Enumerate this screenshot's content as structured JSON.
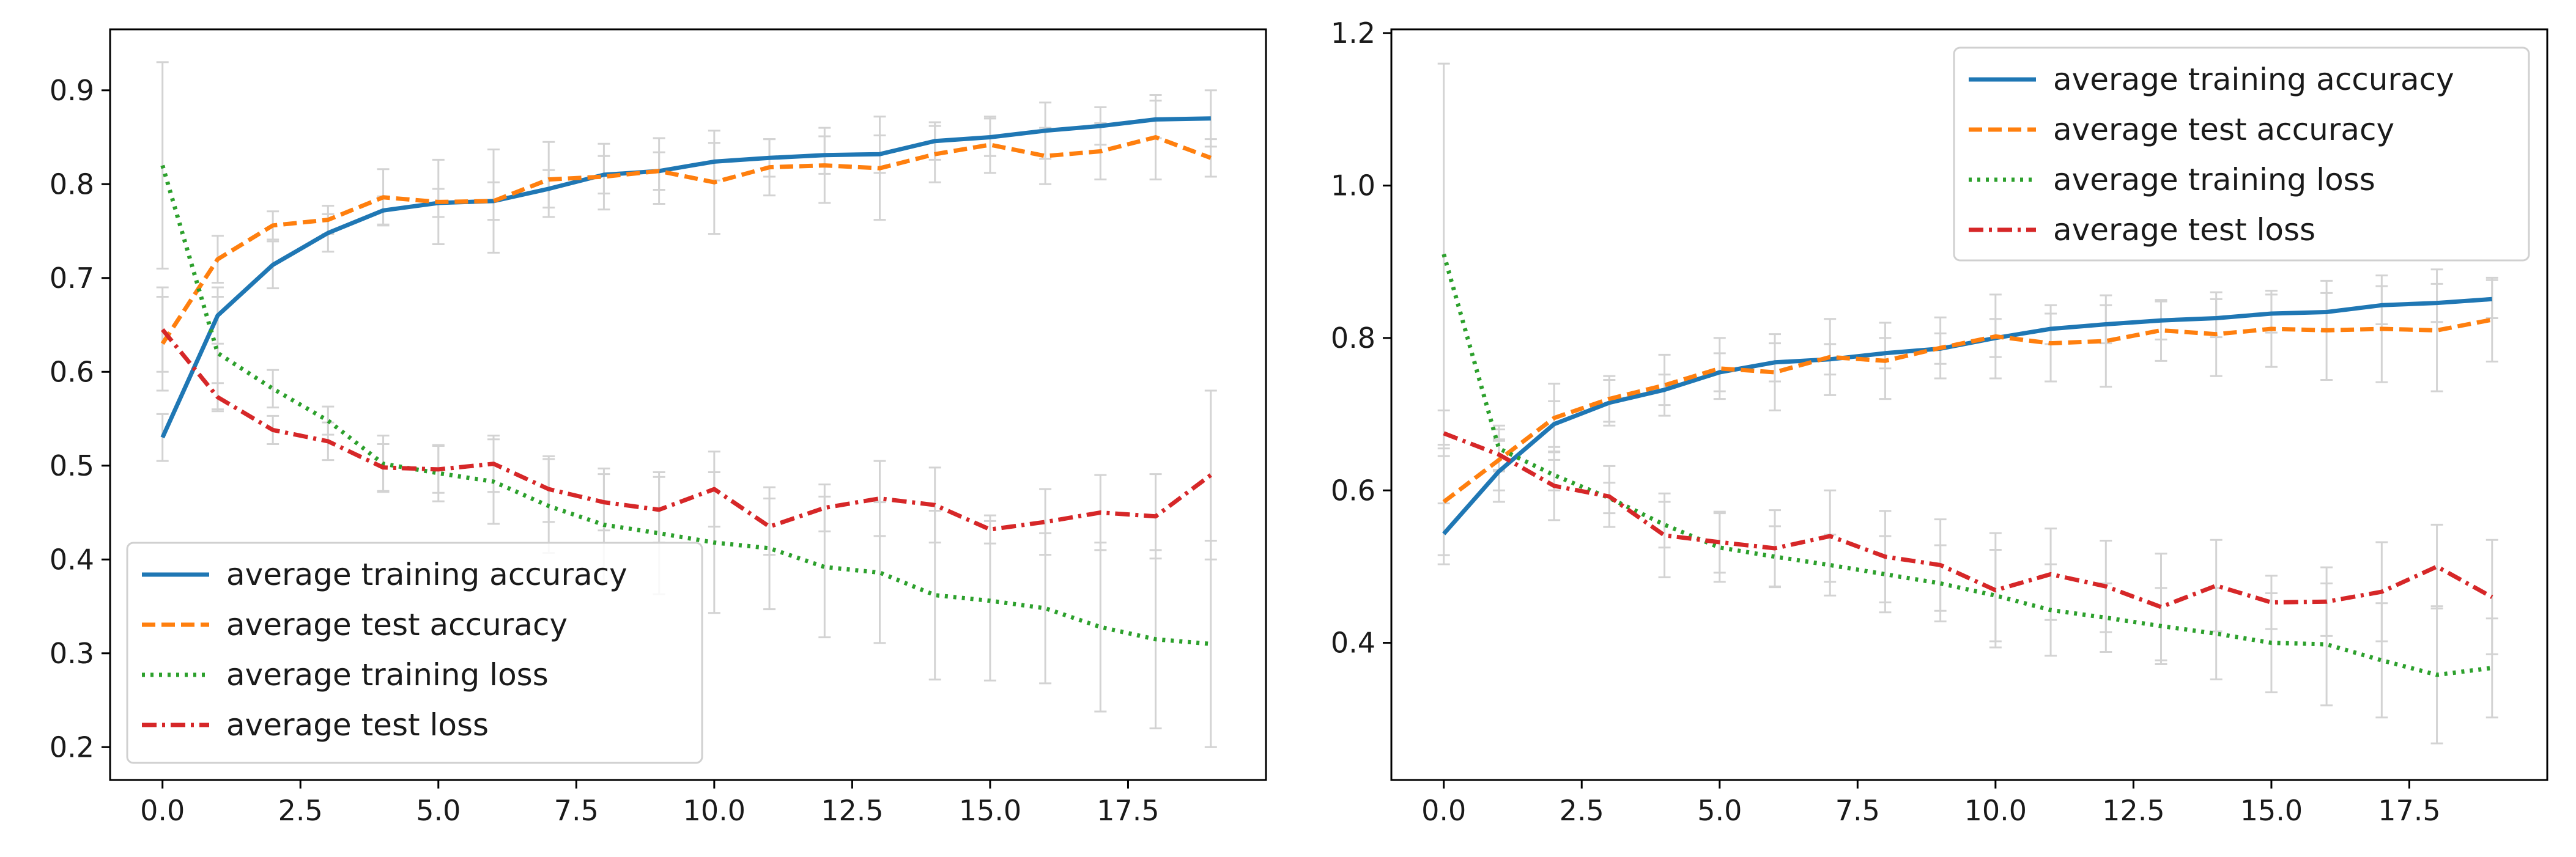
{
  "chart_data": [
    {
      "type": "line",
      "title": "",
      "xlabel": "",
      "ylabel": "",
      "xlim": [
        -0.95,
        20.0
      ],
      "ylim": [
        0.165,
        0.965
      ],
      "xticks": [
        0.0,
        2.5,
        5.0,
        7.5,
        10.0,
        12.5,
        15.0,
        17.5
      ],
      "xtick_labels": [
        "0.0",
        "2.5",
        "5.0",
        "7.5",
        "10.0",
        "12.5",
        "15.0",
        "17.5"
      ],
      "yticks": [
        0.2,
        0.3,
        0.4,
        0.5,
        0.6,
        0.7,
        0.8,
        0.9
      ],
      "ytick_labels": [
        "0.2",
        "0.3",
        "0.4",
        "0.5",
        "0.6",
        "0.7",
        "0.8",
        "0.9"
      ],
      "legend_position": "lower-left",
      "x": [
        0,
        1,
        2,
        3,
        4,
        5,
        6,
        7,
        8,
        9,
        10,
        11,
        12,
        13,
        14,
        15,
        16,
        17,
        18,
        19
      ],
      "series": [
        {
          "name": "average training accuracy",
          "color": "#1f77b4",
          "style": "solid",
          "values": [
            0.53,
            0.66,
            0.714,
            0.748,
            0.772,
            0.78,
            0.782,
            0.795,
            0.81,
            0.814,
            0.824,
            0.828,
            0.831,
            0.832,
            0.846,
            0.85,
            0.857,
            0.862,
            0.869,
            0.87
          ],
          "errors": [
            0.025,
            0.03,
            0.025,
            0.02,
            0.015,
            0.015,
            0.02,
            0.02,
            0.02,
            0.02,
            0.02,
            0.02,
            0.02,
            0.02,
            0.02,
            0.02,
            0.03,
            0.02,
            0.02,
            0.03
          ]
        },
        {
          "name": "average test accuracy",
          "color": "#ff7f0e",
          "style": "dashed",
          "values": [
            0.63,
            0.72,
            0.756,
            0.762,
            0.786,
            0.781,
            0.782,
            0.805,
            0.808,
            0.814,
            0.802,
            0.818,
            0.82,
            0.817,
            0.832,
            0.842,
            0.83,
            0.835,
            0.85,
            0.828
          ],
          "errors": [
            0.05,
            0.025,
            0.015,
            0.015,
            0.03,
            0.045,
            0.055,
            0.04,
            0.035,
            0.035,
            0.055,
            0.03,
            0.04,
            0.055,
            0.03,
            0.03,
            0.03,
            0.03,
            0.045,
            0.02
          ]
        },
        {
          "name": "average training loss",
          "color": "#2ca02c",
          "style": "dotted",
          "values": [
            0.82,
            0.62,
            0.582,
            0.548,
            0.502,
            0.492,
            0.483,
            0.457,
            0.437,
            0.428,
            0.418,
            0.412,
            0.392,
            0.386,
            0.362,
            0.356,
            0.348,
            0.328,
            0.315,
            0.31
          ],
          "errors": [
            0.11,
            0.06,
            0.02,
            0.015,
            0.03,
            0.03,
            0.045,
            0.05,
            0.06,
            0.065,
            0.075,
            0.065,
            0.075,
            0.075,
            0.09,
            0.085,
            0.08,
            0.09,
            0.095,
            0.11
          ]
        },
        {
          "name": "average test loss",
          "color": "#d62728",
          "style": "dashdot",
          "values": [
            0.645,
            0.573,
            0.538,
            0.526,
            0.498,
            0.496,
            0.502,
            0.475,
            0.461,
            0.453,
            0.475,
            0.435,
            0.455,
            0.465,
            0.458,
            0.432,
            0.44,
            0.45,
            0.446,
            0.49
          ],
          "errors": [
            0.045,
            0.015,
            0.015,
            0.02,
            0.025,
            0.025,
            0.03,
            0.035,
            0.03,
            0.035,
            0.04,
            0.03,
            0.025,
            0.04,
            0.04,
            0.015,
            0.035,
            0.04,
            0.045,
            0.09
          ]
        }
      ]
    },
    {
      "type": "line",
      "title": "",
      "xlabel": "",
      "ylabel": "",
      "xlim": [
        -0.95,
        20.0
      ],
      "ylim": [
        0.22,
        1.205
      ],
      "xticks": [
        0.0,
        2.5,
        5.0,
        7.5,
        10.0,
        12.5,
        15.0,
        17.5
      ],
      "xtick_labels": [
        "0.0",
        "2.5",
        "5.0",
        "7.5",
        "10.0",
        "12.5",
        "15.0",
        "17.5"
      ],
      "yticks": [
        0.4,
        0.6,
        0.8,
        1.0,
        1.2
      ],
      "ytick_labels": [
        "0.4",
        "0.6",
        "0.8",
        "1.0",
        "1.2"
      ],
      "legend_position": "upper-right",
      "x": [
        0,
        1,
        2,
        3,
        4,
        5,
        6,
        7,
        8,
        9,
        10,
        11,
        12,
        13,
        14,
        15,
        16,
        17,
        18,
        19
      ],
      "series": [
        {
          "name": "average training accuracy",
          "color": "#1f77b4",
          "style": "solid",
          "values": [
            0.543,
            0.625,
            0.687,
            0.715,
            0.732,
            0.755,
            0.768,
            0.772,
            0.78,
            0.786,
            0.8,
            0.812,
            0.818,
            0.823,
            0.826,
            0.832,
            0.834,
            0.843,
            0.846,
            0.851
          ],
          "errors": [
            0.04,
            0.04,
            0.03,
            0.03,
            0.02,
            0.025,
            0.025,
            0.02,
            0.02,
            0.02,
            0.025,
            0.02,
            0.025,
            0.025,
            0.025,
            0.025,
            0.025,
            0.025,
            0.025,
            0.025
          ]
        },
        {
          "name": "average test accuracy",
          "color": "#ff7f0e",
          "style": "dashed",
          "values": [
            0.585,
            0.64,
            0.695,
            0.72,
            0.738,
            0.76,
            0.755,
            0.775,
            0.77,
            0.787,
            0.802,
            0.793,
            0.796,
            0.81,
            0.805,
            0.812,
            0.81,
            0.812,
            0.81,
            0.824
          ],
          "errors": [
            0.07,
            0.04,
            0.045,
            0.03,
            0.04,
            0.04,
            0.05,
            0.05,
            0.05,
            0.04,
            0.055,
            0.05,
            0.06,
            0.04,
            0.055,
            0.05,
            0.065,
            0.07,
            0.08,
            0.055
          ]
        },
        {
          "name": "average training loss",
          "color": "#2ca02c",
          "style": "dotted",
          "values": [
            0.91,
            0.655,
            0.62,
            0.59,
            0.555,
            0.525,
            0.513,
            0.502,
            0.49,
            0.478,
            0.462,
            0.443,
            0.433,
            0.422,
            0.412,
            0.4,
            0.398,
            0.377,
            0.358,
            0.367
          ],
          "errors": [
            0.25,
            0.03,
            0.02,
            0.02,
            0.03,
            0.045,
            0.04,
            0.04,
            0.05,
            0.05,
            0.06,
            0.06,
            0.045,
            0.05,
            0.06,
            0.065,
            0.08,
            0.075,
            0.09,
            0.065
          ]
        },
        {
          "name": "average test loss",
          "color": "#d62728",
          "style": "dashdot",
          "values": [
            0.675,
            0.647,
            0.606,
            0.592,
            0.541,
            0.532,
            0.524,
            0.54,
            0.513,
            0.502,
            0.469,
            0.49,
            0.474,
            0.447,
            0.475,
            0.453,
            0.454,
            0.467,
            0.5,
            0.46
          ],
          "errors": [
            0.03,
            0.02,
            0.045,
            0.04,
            0.055,
            0.04,
            0.05,
            0.06,
            0.06,
            0.06,
            0.075,
            0.06,
            0.06,
            0.07,
            0.06,
            0.035,
            0.045,
            0.065,
            0.055,
            0.075
          ]
        }
      ]
    }
  ]
}
